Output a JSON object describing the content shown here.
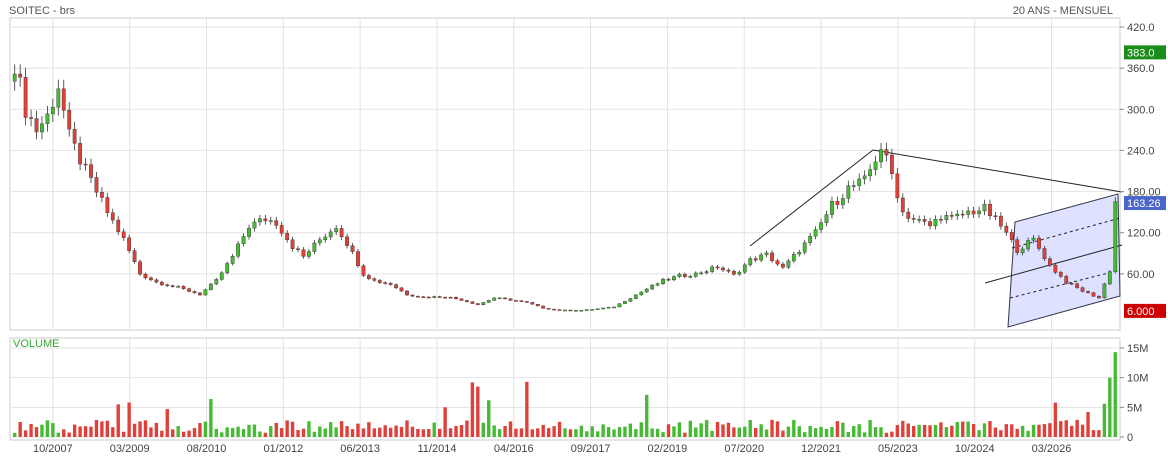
{
  "header": {
    "symbol": "SOITEC - brs",
    "period": "20 ANS - MENSUEL"
  },
  "colors": {
    "up": "#44bb33",
    "down": "#e0403a",
    "grid": "#e2e2e2",
    "channel_fill": "#d8dcff",
    "last_label_bg": "#4a66c8",
    "max_label_bg": "#1a8c1a",
    "min_label_bg": "#cc0000"
  },
  "chart_data": [
    {
      "type": "candlestick",
      "title": "SOITEC - brs",
      "ylim": [
        0,
        430
      ],
      "y_ticks": [
        "420.0",
        "360.0",
        "300.0",
        "240.0",
        "180.00",
        "120.00",
        "60.00"
      ],
      "x_tick_labels": [
        "10/2007",
        "03/2009",
        "08/2010",
        "01/2012",
        "06/2013",
        "11/2014",
        "04/2016",
        "09/2017",
        "02/2019",
        "07/2020",
        "12/2021",
        "05/2023",
        "10/2024",
        "03/2026"
      ],
      "price_labels": {
        "max": "383.0",
        "last": "163.26",
        "min": "6.000"
      },
      "anchors": [
        [
          0,
          368
        ],
        [
          2,
          300
        ],
        [
          4,
          270
        ],
        [
          6,
          290
        ],
        [
          8,
          335
        ],
        [
          10,
          260
        ],
        [
          13,
          210
        ],
        [
          17,
          150
        ],
        [
          20,
          110
        ],
        [
          23,
          60
        ],
        [
          26,
          48
        ],
        [
          30,
          40
        ],
        [
          34,
          30
        ],
        [
          37,
          50
        ],
        [
          40,
          85
        ],
        [
          43,
          130
        ],
        [
          46,
          140
        ],
        [
          48,
          135
        ],
        [
          51,
          100
        ],
        [
          53,
          85
        ],
        [
          56,
          110
        ],
        [
          59,
          130
        ],
        [
          61,
          105
        ],
        [
          64,
          60
        ],
        [
          66,
          50
        ],
        [
          69,
          45
        ],
        [
          72,
          30
        ],
        [
          75,
          26
        ],
        [
          79,
          27
        ],
        [
          82,
          22
        ],
        [
          85,
          15
        ],
        [
          88,
          25
        ],
        [
          91,
          22
        ],
        [
          94,
          18
        ],
        [
          97,
          10
        ],
        [
          100,
          7
        ],
        [
          104,
          7
        ],
        [
          107,
          9
        ],
        [
          110,
          12
        ],
        [
          113,
          25
        ],
        [
          116,
          38
        ],
        [
          119,
          50
        ],
        [
          122,
          57
        ],
        [
          125,
          60
        ],
        [
          129,
          70
        ],
        [
          132,
          58
        ],
        [
          135,
          80
        ],
        [
          138,
          88
        ],
        [
          141,
          68
        ],
        [
          144,
          95
        ],
        [
          147,
          120
        ],
        [
          150,
          160
        ],
        [
          153,
          185
        ],
        [
          156,
          195
        ],
        [
          159,
          245
        ],
        [
          161,
          205
        ],
        [
          163,
          150
        ],
        [
          165,
          140
        ],
        [
          168,
          130
        ],
        [
          170,
          145
        ],
        [
          172,
          140
        ],
        [
          175,
          150
        ],
        [
          178,
          155
        ],
        [
          181,
          130
        ],
        [
          184,
          95
        ],
        [
          187,
          110
        ],
        [
          190,
          72
        ],
        [
          193,
          48
        ],
        [
          196,
          35
        ],
        [
          199,
          25
        ],
        [
          201,
          65
        ],
        [
          202,
          165
        ]
      ],
      "volume": {
        "title": "VOLUME",
        "y_ticks": [
          "15M",
          "10M",
          "5M",
          "0"
        ],
        "ylim": [
          0,
          15
        ],
        "spikes": [
          [
            19,
            5.5
          ],
          [
            21,
            5.8
          ],
          [
            28,
            4.7
          ],
          [
            36,
            6.4
          ],
          [
            79,
            5
          ],
          [
            84,
            9.2
          ],
          [
            85,
            8.5
          ],
          [
            87,
            6.2
          ],
          [
            94,
            9.3
          ],
          [
            116,
            7.1
          ],
          [
            191,
            5.8
          ],
          [
            197,
            4.2
          ],
          [
            200,
            5.6
          ],
          [
            201,
            10
          ],
          [
            202,
            14.3
          ]
        ]
      }
    }
  ]
}
